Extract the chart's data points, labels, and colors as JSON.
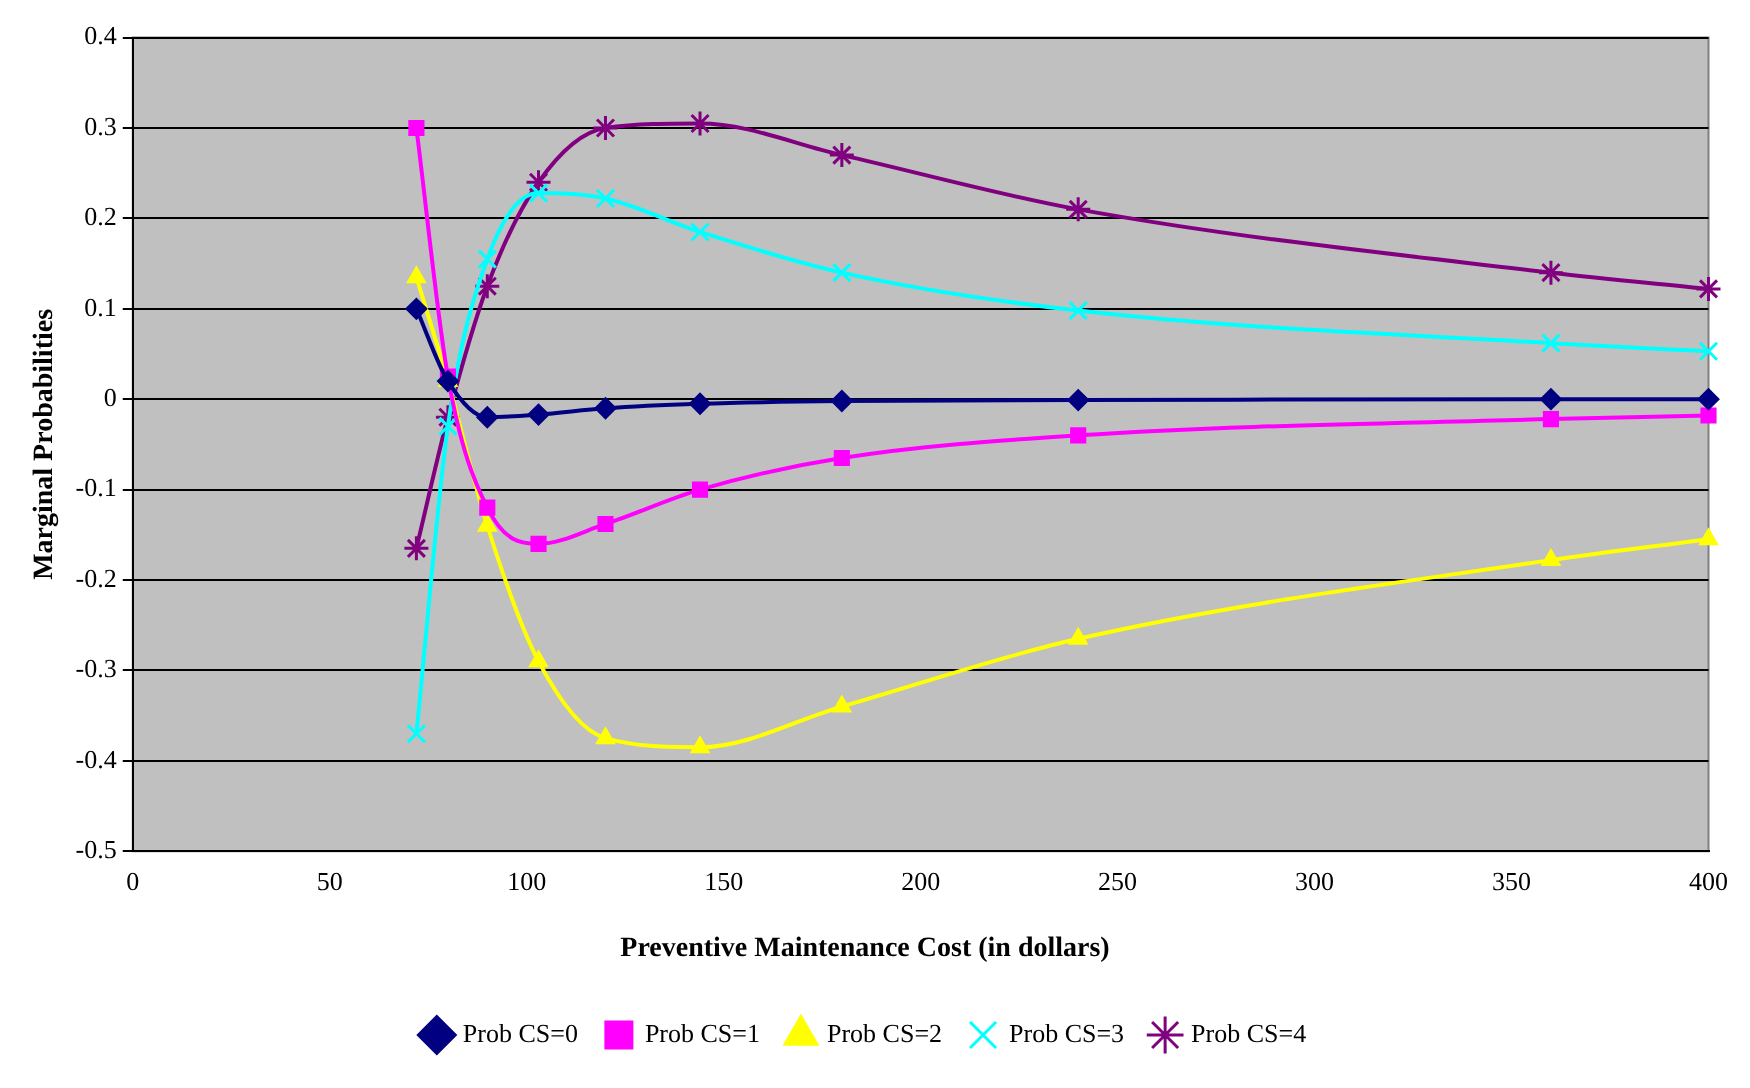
{
  "chart_data": {
    "type": "line",
    "xlabel": "Preventive Maintenance Cost (in dollars)",
    "ylabel": "Marginal Probabilities",
    "xlim": [
      0,
      400
    ],
    "xticks": [
      0,
      50,
      100,
      150,
      200,
      250,
      300,
      350,
      400
    ],
    "ylim": [
      -0.5,
      0.4
    ],
    "yticks": [
      -0.5,
      -0.4,
      -0.3,
      -0.2,
      -0.1,
      0,
      0.1,
      0.2,
      0.3,
      0.4
    ],
    "x": [
      72,
      80,
      90,
      103,
      120,
      144,
      180,
      240,
      360,
      400
    ],
    "grid": "y",
    "legend": "bottom",
    "line_style": "solid",
    "series": [
      {
        "name": "Prob CS=0",
        "color": "#000080",
        "marker": "diamond",
        "values": [
          0.1,
          0.02,
          -0.02,
          -0.017,
          -0.01,
          -0.005,
          -0.002,
          -0.001,
          0,
          0
        ]
      },
      {
        "name": "Prob CS=1",
        "color": "#ff00ff",
        "marker": "square",
        "values": [
          0.3,
          0.025,
          -0.12,
          -0.16,
          -0.138,
          -0.1,
          -0.065,
          -0.04,
          -0.022,
          -0.018
        ]
      },
      {
        "name": "Prob CS=2",
        "color": "#ffff00",
        "marker": "triangle",
        "values": [
          0.135,
          0.02,
          -0.14,
          -0.29,
          -0.375,
          -0.385,
          -0.34,
          -0.265,
          -0.178,
          -0.155
        ]
      },
      {
        "name": "Prob CS=3",
        "color": "#00ffff",
        "marker": "cross",
        "values": [
          -0.37,
          -0.03,
          0.155,
          0.228,
          0.222,
          0.185,
          0.14,
          0.098,
          0.062,
          0.053
        ]
      },
      {
        "name": "Prob CS=4",
        "color": "#800080",
        "marker": "cross",
        "values": [
          -0.165,
          -0.02,
          0.125,
          0.24,
          0.3,
          0.305,
          0.27,
          0.21,
          0.14,
          0.122
        ]
      }
    ]
  }
}
